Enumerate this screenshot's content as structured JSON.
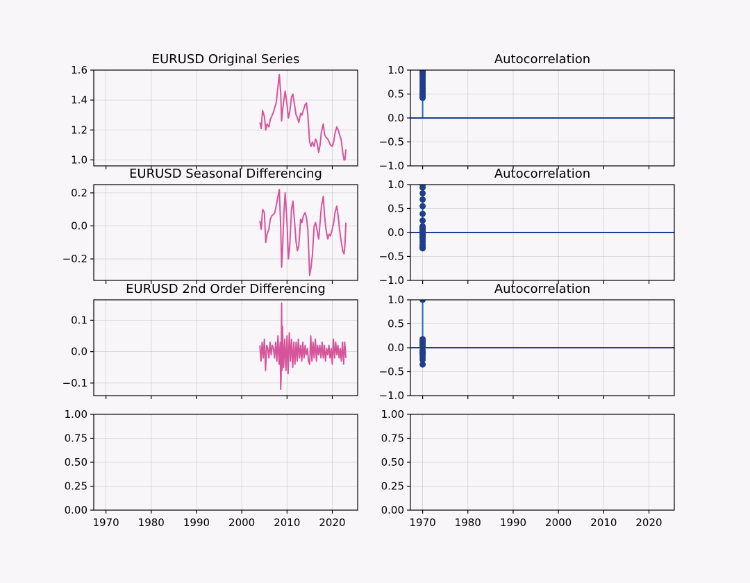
{
  "colors": {
    "background": "#f8f6f9",
    "series": "#d6559a",
    "acf_marker": "#1f3f8a",
    "acf_stem": "#1f6fb4",
    "zero_line": "#1f3f8a"
  },
  "x_ticks": [
    1970,
    1980,
    1990,
    2000,
    2010,
    2020
  ],
  "x_range": [
    1967.3,
    2025.6
  ],
  "chart_data": [
    {
      "panel": "ts1",
      "type": "line",
      "title": "EURUSD Original Series",
      "ylim": [
        0.96,
        1.6
      ],
      "yticks": [
        "1.6",
        "1.4",
        "1.2",
        "1.0"
      ],
      "ytick_values": [
        1.6,
        1.4,
        1.2,
        1.0
      ],
      "grid": true,
      "series": [
        {
          "color": "#d6559a",
          "x": [
            2004.0,
            2004.3,
            2004.6,
            2005.0,
            2005.3,
            2005.6,
            2006.0,
            2006.3,
            2006.6,
            2007.0,
            2007.3,
            2007.6,
            2008.0,
            2008.3,
            2008.6,
            2008.8,
            2009.0,
            2009.3,
            2009.6,
            2010.0,
            2010.3,
            2010.6,
            2011.0,
            2011.3,
            2011.6,
            2012.0,
            2012.3,
            2012.6,
            2013.0,
            2013.3,
            2013.6,
            2014.0,
            2014.3,
            2014.6,
            2015.0,
            2015.3,
            2015.6,
            2016.0,
            2016.3,
            2016.6,
            2017.0,
            2017.3,
            2017.6,
            2018.0,
            2018.3,
            2018.6,
            2019.0,
            2019.3,
            2019.6,
            2020.0,
            2020.3,
            2020.6,
            2021.0,
            2021.3,
            2021.6,
            2022.0,
            2022.3,
            2022.6,
            2022.8,
            2023.0
          ],
          "y": [
            1.25,
            1.21,
            1.33,
            1.29,
            1.2,
            1.24,
            1.22,
            1.27,
            1.29,
            1.32,
            1.35,
            1.38,
            1.49,
            1.57,
            1.45,
            1.26,
            1.33,
            1.4,
            1.46,
            1.37,
            1.28,
            1.32,
            1.42,
            1.44,
            1.38,
            1.3,
            1.28,
            1.25,
            1.31,
            1.3,
            1.33,
            1.37,
            1.38,
            1.3,
            1.12,
            1.09,
            1.12,
            1.09,
            1.14,
            1.12,
            1.05,
            1.1,
            1.19,
            1.24,
            1.17,
            1.15,
            1.14,
            1.12,
            1.1,
            1.09,
            1.12,
            1.18,
            1.22,
            1.2,
            1.17,
            1.13,
            1.05,
            1.0,
            1.0,
            1.07
          ]
        }
      ]
    },
    {
      "panel": "acf1",
      "type": "stem",
      "title": "Autocorrelation",
      "ylim": [
        -1.0,
        1.0
      ],
      "yticks": [
        "1.0",
        "0.5",
        "0.0",
        "−0.5",
        "−1.0"
      ],
      "ytick_values": [
        1.0,
        0.5,
        0.0,
        -0.5,
        -1.0
      ],
      "grid": true,
      "x": 1970.0,
      "values": [
        1.0,
        0.98,
        0.95,
        0.92,
        0.89,
        0.85,
        0.82,
        0.78,
        0.74,
        0.7,
        0.66,
        0.62,
        0.58,
        0.55,
        0.52,
        0.49,
        0.47,
        0.45,
        0.43,
        0.42
      ]
    },
    {
      "panel": "ts2",
      "type": "line",
      "title": "EURUSD Seasonal Differencing",
      "ylim": [
        -0.33,
        0.25
      ],
      "yticks": [
        "0.2",
        "0.0",
        "−0.2"
      ],
      "ytick_values": [
        0.2,
        0.0,
        -0.2
      ],
      "grid": true,
      "series": [
        {
          "color": "#d6559a",
          "x": [
            2004.0,
            2004.3,
            2004.6,
            2005.0,
            2005.3,
            2005.6,
            2006.0,
            2006.3,
            2006.6,
            2007.0,
            2007.3,
            2007.6,
            2008.0,
            2008.3,
            2008.6,
            2008.8,
            2009.0,
            2009.3,
            2009.6,
            2010.0,
            2010.3,
            2010.6,
            2011.0,
            2011.3,
            2011.6,
            2012.0,
            2012.3,
            2012.6,
            2013.0,
            2013.3,
            2013.6,
            2014.0,
            2014.3,
            2014.6,
            2015.0,
            2015.3,
            2015.6,
            2016.0,
            2016.3,
            2016.6,
            2017.0,
            2017.3,
            2017.6,
            2018.0,
            2018.3,
            2018.6,
            2019.0,
            2019.3,
            2019.6,
            2020.0,
            2020.3,
            2020.6,
            2021.0,
            2021.3,
            2021.6,
            2022.0,
            2022.3,
            2022.6,
            2022.8,
            2023.0
          ],
          "y": [
            0.03,
            -0.02,
            0.1,
            0.08,
            -0.1,
            -0.05,
            -0.02,
            0.04,
            0.06,
            0.07,
            0.08,
            0.12,
            0.18,
            0.22,
            0.0,
            -0.25,
            -0.15,
            0.08,
            0.2,
            0.02,
            -0.2,
            -0.12,
            0.1,
            0.15,
            0.05,
            -0.1,
            -0.15,
            -0.12,
            0.04,
            0.02,
            0.06,
            0.08,
            0.05,
            -0.02,
            -0.3,
            -0.25,
            -0.18,
            0.0,
            0.02,
            -0.02,
            -0.08,
            0.02,
            0.12,
            0.18,
            0.06,
            -0.02,
            -0.08,
            -0.05,
            -0.06,
            -0.02,
            0.02,
            0.08,
            0.12,
            0.06,
            -0.02,
            -0.1,
            -0.15,
            -0.17,
            -0.12,
            0.02
          ]
        }
      ]
    },
    {
      "panel": "acf2",
      "type": "stem",
      "title": "Autocorrelation",
      "ylim": [
        -1.0,
        1.0
      ],
      "yticks": [
        "1.0",
        "0.5",
        "0.0",
        "−0.5",
        "−1.0"
      ],
      "ytick_values": [
        1.0,
        0.5,
        0.0,
        -0.5,
        -1.0
      ],
      "grid": true,
      "x": 1970.0,
      "values": [
        1.0,
        0.94,
        0.82,
        0.69,
        0.55,
        0.39,
        0.25,
        0.13,
        0.04,
        -0.04,
        -0.11,
        -0.18,
        -0.25,
        -0.3,
        -0.32,
        -0.33,
        -0.3,
        -0.26,
        -0.2,
        -0.14,
        -0.07,
        0.0,
        0.05,
        0.08,
        0.1,
        0.11,
        0.09,
        0.06,
        0.02,
        -0.02,
        -0.06,
        -0.1
      ]
    },
    {
      "panel": "ts3",
      "type": "line",
      "title": "EURUSD 2nd Order Differencing",
      "ylim": [
        -0.14,
        0.165
      ],
      "yticks": [
        "0.1",
        "0.0",
        "−0.1"
      ],
      "ytick_values": [
        0.1,
        0.0,
        -0.1
      ],
      "grid": true,
      "series": [
        {
          "color": "#d6559a",
          "x": [
            2004.0,
            2004.25,
            2004.5,
            2004.75,
            2005.0,
            2005.25,
            2005.5,
            2005.75,
            2006.0,
            2006.25,
            2006.5,
            2006.75,
            2007.0,
            2007.25,
            2007.5,
            2007.75,
            2008.0,
            2008.25,
            2008.5,
            2008.6,
            2008.7,
            2008.8,
            2008.9,
            2009.0,
            2009.25,
            2009.5,
            2009.75,
            2010.0,
            2010.25,
            2010.5,
            2010.75,
            2011.0,
            2011.25,
            2011.5,
            2011.75,
            2012.0,
            2012.25,
            2012.5,
            2012.75,
            2013.0,
            2013.25,
            2013.5,
            2013.75,
            2014.0,
            2014.25,
            2014.5,
            2014.75,
            2015.0,
            2015.25,
            2015.5,
            2015.75,
            2016.0,
            2016.25,
            2016.5,
            2016.75,
            2017.0,
            2017.25,
            2017.5,
            2017.75,
            2018.0,
            2018.25,
            2018.5,
            2018.75,
            2019.0,
            2019.25,
            2019.5,
            2019.75,
            2020.0,
            2020.25,
            2020.5,
            2020.75,
            2021.0,
            2021.25,
            2021.5,
            2021.75,
            2022.0,
            2022.25,
            2022.5,
            2022.75,
            2023.0
          ],
          "y": [
            0.02,
            -0.03,
            0.03,
            -0.02,
            0.04,
            -0.06,
            0.02,
            0.01,
            -0.02,
            0.03,
            -0.01,
            0.02,
            0.01,
            -0.02,
            0.03,
            -0.03,
            0.05,
            -0.04,
            0.03,
            -0.12,
            -0.08,
            0.155,
            -0.06,
            0.08,
            -0.05,
            0.04,
            -0.06,
            0.05,
            -0.07,
            0.06,
            -0.03,
            0.04,
            -0.05,
            0.03,
            -0.04,
            0.03,
            -0.03,
            0.04,
            -0.02,
            0.02,
            -0.03,
            0.03,
            -0.02,
            0.02,
            -0.01,
            0.01,
            -0.03,
            -0.04,
            0.05,
            -0.03,
            0.03,
            -0.02,
            0.04,
            -0.03,
            0.02,
            -0.01,
            0.02,
            -0.02,
            0.03,
            -0.02,
            0.02,
            -0.03,
            0.01,
            -0.01,
            0.02,
            -0.02,
            0.01,
            -0.04,
            0.04,
            -0.02,
            0.03,
            -0.01,
            0.02,
            -0.02,
            0.01,
            -0.03,
            0.03,
            -0.04,
            0.03,
            -0.02
          ]
        }
      ]
    },
    {
      "panel": "acf3",
      "type": "stem",
      "title": "Autocorrelation",
      "ylim": [
        -1.0,
        1.0
      ],
      "yticks": [
        "1.0",
        "0.5",
        "0.0",
        "−0.5",
        "−1.0"
      ],
      "ytick_values": [
        1.0,
        0.5,
        0.0,
        -0.5,
        -1.0
      ],
      "grid": true,
      "x": 1970.0,
      "values": [
        1.0,
        -0.35,
        0.18,
        0.15,
        -0.1,
        0.12,
        -0.2,
        0.08,
        0.05,
        -0.05,
        0.1,
        -0.15,
        -0.25,
        0.02,
        -0.08,
        0.06,
        0.13,
        -0.12
      ]
    },
    {
      "panel": "empty1",
      "type": "line",
      "title": "",
      "ylim": [
        0.0,
        1.0
      ],
      "yticks": [
        "1.00",
        "0.75",
        "0.50",
        "0.25",
        "0.00"
      ],
      "ytick_values": [
        1.0,
        0.75,
        0.5,
        0.25,
        0.0
      ],
      "grid": true,
      "series": []
    },
    {
      "panel": "empty2",
      "type": "line",
      "title": "",
      "ylim": [
        0.0,
        1.0
      ],
      "yticks": [
        "1.00",
        "0.75",
        "0.50",
        "0.25",
        "0.00"
      ],
      "ytick_values": [
        1.0,
        0.75,
        0.5,
        0.25,
        0.0
      ],
      "grid": true,
      "series": []
    }
  ]
}
